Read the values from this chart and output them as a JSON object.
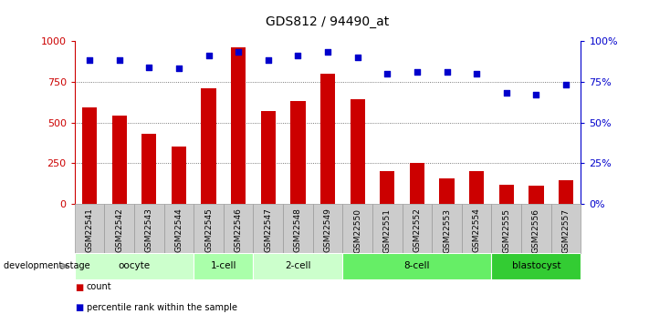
{
  "title": "GDS812 / 94490_at",
  "categories": [
    "GSM22541",
    "GSM22542",
    "GSM22543",
    "GSM22544",
    "GSM22545",
    "GSM22546",
    "GSM22547",
    "GSM22548",
    "GSM22549",
    "GSM22550",
    "GSM22551",
    "GSM22552",
    "GSM22553",
    "GSM22554",
    "GSM22555",
    "GSM22556",
    "GSM22557"
  ],
  "counts": [
    590,
    540,
    430,
    350,
    710,
    960,
    570,
    630,
    800,
    640,
    200,
    255,
    155,
    200,
    120,
    115,
    145
  ],
  "percentiles": [
    88,
    88,
    84,
    83,
    91,
    93,
    88,
    91,
    93,
    90,
    80,
    81,
    81,
    80,
    68,
    67,
    73
  ],
  "bar_color": "#cc0000",
  "dot_color": "#0000cc",
  "ylim_left": [
    0,
    1000
  ],
  "ylim_right": [
    0,
    100
  ],
  "yticks_left": [
    0,
    250,
    500,
    750,
    1000
  ],
  "yticks_right": [
    0,
    25,
    50,
    75,
    100
  ],
  "ytick_labels_left": [
    "0",
    "250",
    "500",
    "750",
    "1000"
  ],
  "ytick_labels_right": [
    "0%",
    "25%",
    "50%",
    "75%",
    "100%"
  ],
  "groups": [
    {
      "label": "oocyte",
      "start": 0,
      "end": 4,
      "color": "#ccffcc"
    },
    {
      "label": "1-cell",
      "start": 4,
      "end": 6,
      "color": "#aaffaa"
    },
    {
      "label": "2-cell",
      "start": 6,
      "end": 9,
      "color": "#ccffcc"
    },
    {
      "label": "8-cell",
      "start": 9,
      "end": 14,
      "color": "#66ee66"
    },
    {
      "label": "blastocyst",
      "start": 14,
      "end": 17,
      "color": "#33cc33"
    }
  ],
  "dev_stage_label": "development stage",
  "legend_count_label": "count",
  "legend_percentile_label": "percentile rank within the sample",
  "grid_color": "#555555",
  "axis_left_color": "#cc0000",
  "axis_right_color": "#0000cc",
  "bg_color": "#ffffff",
  "bar_width": 0.5,
  "xtick_bg_color": "#cccccc",
  "xtick_border_color": "#999999"
}
